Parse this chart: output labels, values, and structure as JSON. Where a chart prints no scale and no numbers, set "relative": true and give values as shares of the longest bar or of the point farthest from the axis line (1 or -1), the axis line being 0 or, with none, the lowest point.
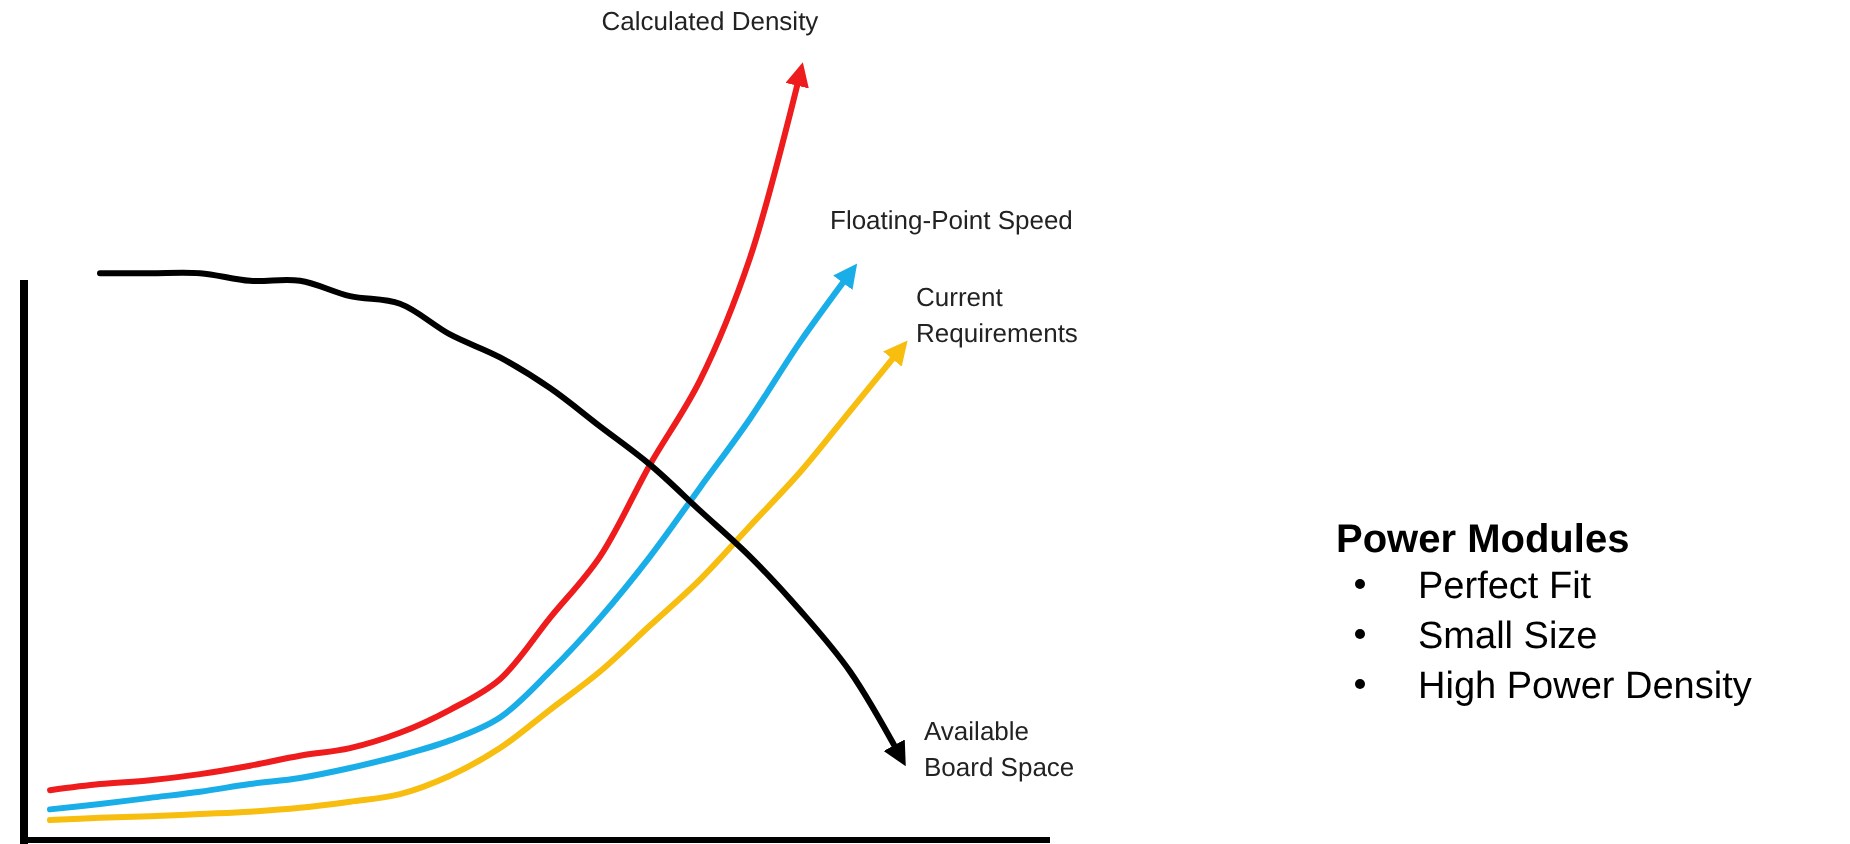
{
  "chart_data": {
    "type": "line",
    "relative": true,
    "grid": false,
    "marker": "none",
    "categories": [
      null,
      null,
      null,
      null,
      null,
      null,
      null,
      null,
      null,
      null,
      null,
      null,
      null,
      null,
      null,
      null,
      null,
      null
    ],
    "series": [
      {
        "name": "Calculated Density",
        "color": "#ee1c1c",
        "values": [
          0.065,
          0.073,
          0.078,
          0.086,
          0.097,
          0.11,
          0.12,
          0.14,
          0.17,
          0.21,
          0.29,
          0.37,
          0.49,
          0.6,
          0.76,
          1.0,
          null,
          null
        ]
      },
      {
        "name": "Floating-Point Speed",
        "color": "#1aaee8",
        "values": [
          0.04,
          0.047,
          0.055,
          0.063,
          0.073,
          0.081,
          0.094,
          0.11,
          0.13,
          0.16,
          0.22,
          0.29,
          0.37,
          0.46,
          0.55,
          0.65,
          0.74,
          null
        ]
      },
      {
        "name": "Current Requirements",
        "color": "#f7bd0f",
        "values": [
          0.026,
          0.029,
          0.031,
          0.034,
          0.037,
          0.042,
          0.05,
          0.06,
          0.084,
          0.12,
          0.17,
          0.22,
          0.28,
          0.34,
          0.41,
          0.48,
          0.56,
          0.64
        ]
      },
      {
        "name": "Available Board Space",
        "color": "#000000",
        "values": [
          null,
          0.74,
          0.74,
          0.74,
          0.73,
          0.73,
          0.71,
          0.7,
          0.66,
          0.63,
          0.59,
          0.54,
          0.49,
          0.43,
          0.37,
          0.3,
          0.22,
          0.11
        ]
      }
    ],
    "annotations": [
      "Power Modules",
      "Perfect Fit",
      "Small Size",
      "High Power Density"
    ]
  }
}
